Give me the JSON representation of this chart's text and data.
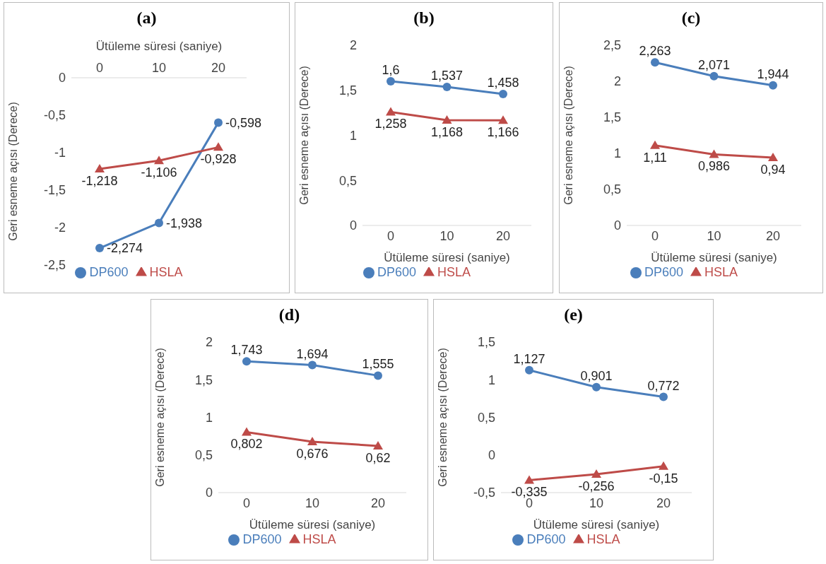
{
  "chart_data": [
    {
      "type": "line",
      "title": "(a)",
      "xlabel": "Ütüleme süresi (saniye)",
      "ylabel": "Geri esneme açısı (Derece)",
      "categories": [
        "0",
        "10",
        "20"
      ],
      "ylim": [
        -2.5,
        0
      ],
      "yticks": [
        {
          "value": -2.5,
          "label": "-2,5"
        },
        -2,
        {
          "value": -1.5,
          "label": "-1,5"
        },
        -1,
        {
          "value": -0.5,
          "label": "-0,5"
        },
        0
      ],
      "legend": "bottom",
      "grid": false,
      "series": [
        {
          "name": "DP600",
          "color": "#4a7ebb",
          "marker": "circle",
          "values": [
            -2.274,
            -1.938,
            -0.598
          ],
          "value_labels": [
            "-2,274",
            "-1,938",
            "-0,598"
          ]
        },
        {
          "name": "HSLA",
          "color": "#be4b48",
          "marker": "triangle",
          "values": [
            -1.218,
            -1.106,
            -0.928
          ],
          "value_labels": [
            "-1,218",
            "-1,106",
            "-0,928"
          ]
        }
      ]
    },
    {
      "type": "line",
      "title": "(b)",
      "xlabel": "Ütüleme süresi (saniye)",
      "ylabel": "Geri esneme açısı (Derece)",
      "categories": [
        "0",
        "10",
        "20"
      ],
      "ylim": [
        0,
        2
      ],
      "yticks": [
        0,
        {
          "value": 0.5,
          "label": "0,5"
        },
        1,
        {
          "value": 1.5,
          "label": "1,5"
        },
        2
      ],
      "legend": "bottom",
      "grid": false,
      "series": [
        {
          "name": "DP600",
          "color": "#4a7ebb",
          "marker": "circle",
          "values": [
            1.6,
            1.537,
            1.458
          ],
          "value_labels": [
            "1,6",
            "1,537",
            "1,458"
          ]
        },
        {
          "name": "HSLA",
          "color": "#be4b48",
          "marker": "triangle",
          "values": [
            1.258,
            1.168,
            1.166
          ],
          "value_labels": [
            "1,258",
            "1,168",
            "1,166"
          ]
        }
      ]
    },
    {
      "type": "line",
      "title": "(c)",
      "xlabel": "Ütüleme süresi (saniye)",
      "ylabel": "Geri esneme açısı (Derece)",
      "categories": [
        "0",
        "10",
        "20"
      ],
      "ylim": [
        0,
        2.5
      ],
      "yticks": [
        0,
        {
          "value": 0.5,
          "label": "0,5"
        },
        1,
        {
          "value": 1.5,
          "label": "1,5"
        },
        2,
        {
          "value": 2.5,
          "label": "2,5"
        }
      ],
      "legend": "bottom",
      "grid": false,
      "series": [
        {
          "name": "DP600",
          "color": "#4a7ebb",
          "marker": "circle",
          "values": [
            2.263,
            2.071,
            1.944
          ],
          "value_labels": [
            "2,263",
            "2,071",
            "1,944"
          ]
        },
        {
          "name": "HSLA",
          "color": "#be4b48",
          "marker": "triangle",
          "values": [
            1.11,
            0.986,
            0.94
          ],
          "value_labels": [
            "1,11",
            "0,986",
            "0,94"
          ]
        }
      ]
    },
    {
      "type": "line",
      "title": "(d)",
      "xlabel": "Ütüleme süresi (saniye)",
      "ylabel": "Geri esneme açısı (Derece)",
      "categories": [
        "0",
        "10",
        "20"
      ],
      "ylim": [
        0,
        2
      ],
      "yticks": [
        0,
        {
          "value": 0.5,
          "label": "0,5"
        },
        1,
        {
          "value": 1.5,
          "label": "1,5"
        },
        2
      ],
      "legend": "bottom",
      "grid": false,
      "series": [
        {
          "name": "DP600",
          "color": "#4a7ebb",
          "marker": "circle",
          "values": [
            1.743,
            1.694,
            1.555
          ],
          "value_labels": [
            "1,743",
            "1,694",
            "1,555"
          ]
        },
        {
          "name": "HSLA",
          "color": "#be4b48",
          "marker": "triangle",
          "values": [
            0.802,
            0.676,
            0.62
          ],
          "value_labels": [
            "0,802",
            "0,676",
            "0,62"
          ]
        }
      ]
    },
    {
      "type": "line",
      "title": "(e)",
      "xlabel": "Ütüleme süresi (saniye)",
      "ylabel": "Geri esneme açısı (Derece)",
      "categories": [
        "0",
        "10",
        "20"
      ],
      "ylim": [
        -0.5,
        1.5
      ],
      "yticks": [
        {
          "value": -0.5,
          "label": "-0,5"
        },
        0,
        {
          "value": 0.5,
          "label": "0,5"
        },
        1,
        {
          "value": 1.5,
          "label": "1,5"
        }
      ],
      "legend": "bottom",
      "grid": false,
      "series": [
        {
          "name": "DP600",
          "color": "#4a7ebb",
          "marker": "circle",
          "values": [
            1.127,
            0.901,
            0.772
          ],
          "value_labels": [
            "1,127",
            "0,901",
            "0,772"
          ]
        },
        {
          "name": "HSLA",
          "color": "#be4b48",
          "marker": "triangle",
          "values": [
            -0.335,
            -0.256,
            -0.15
          ],
          "value_labels": [
            "-0,335",
            "-0,256",
            "-0,15"
          ]
        }
      ]
    }
  ]
}
